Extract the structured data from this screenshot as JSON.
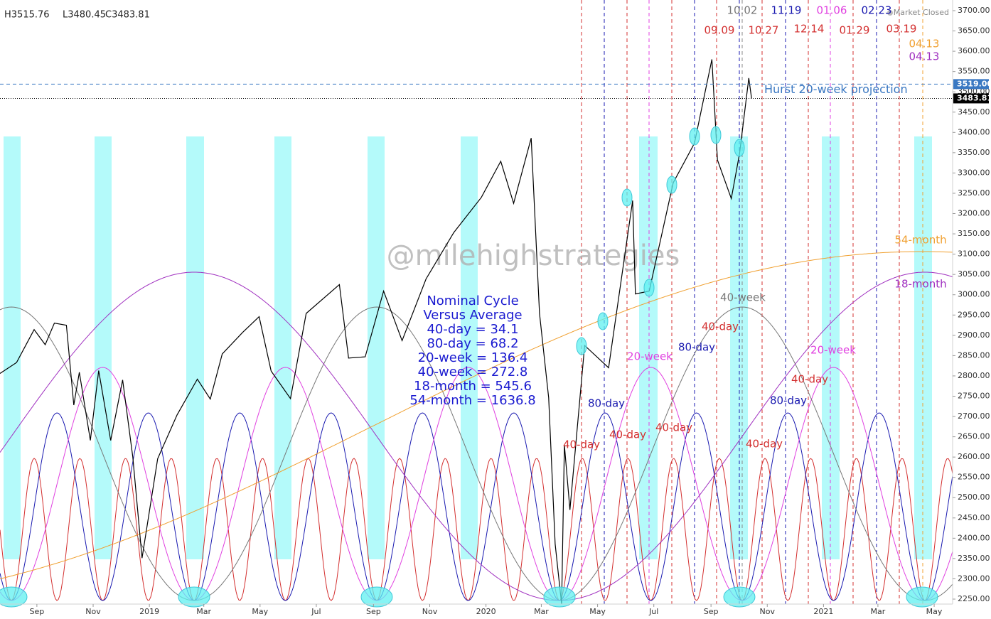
{
  "chart_data": {
    "type": "line",
    "ohlc": [
      "H3515.76",
      "L3480.45",
      "C3483.81"
    ],
    "status": "Market Closed",
    "watermark": "@milehighstrategies",
    "color": "#000000",
    "xlim": [
      "2018-07-23",
      "2021-05-21"
    ],
    "xticks": [
      {
        "value": "2018-09-01",
        "label": "Sep"
      },
      {
        "value": "2018-11-01",
        "label": "Nov"
      },
      {
        "value": "2019-01-01",
        "label": "2019"
      },
      {
        "value": "2019-03-01",
        "label": "Mar"
      },
      {
        "value": "2019-05-01",
        "label": "May"
      },
      {
        "value": "2019-07-01",
        "label": "Jul"
      },
      {
        "value": "2019-09-01",
        "label": "Sep"
      },
      {
        "value": "2019-11-01",
        "label": "Nov"
      },
      {
        "value": "2020-01-01",
        "label": "2020"
      },
      {
        "value": "2020-03-01",
        "label": "Mar"
      },
      {
        "value": "2020-05-01",
        "label": "May"
      },
      {
        "value": "2020-07-01",
        "label": "Jul"
      },
      {
        "value": "2020-09-01",
        "label": "Sep"
      },
      {
        "value": "2020-11-01",
        "label": "Nov"
      },
      {
        "value": "2021-01-01",
        "label": "2021"
      },
      {
        "value": "2021-03-01",
        "label": "Mar"
      },
      {
        "value": "2021-05-01",
        "label": "May"
      }
    ],
    "ylim": [
      2250,
      3700
    ],
    "yticks": [
      {
        "value": 2250,
        "label": "2250.00"
      },
      {
        "value": 2300,
        "label": "2300.00"
      },
      {
        "value": 2350,
        "label": "2350.00"
      },
      {
        "value": 2400,
        "label": "2400.00"
      },
      {
        "value": 2450,
        "label": "2450.00"
      },
      {
        "value": 2500,
        "label": "2500.00"
      },
      {
        "value": 2550,
        "label": "2550.00"
      },
      {
        "value": 2600,
        "label": "2600.00"
      },
      {
        "value": 2650,
        "label": "2650.00"
      },
      {
        "value": 2700,
        "label": "2700.00"
      },
      {
        "value": 2750,
        "label": "2750.00"
      },
      {
        "value": 2800,
        "label": "2800.00"
      },
      {
        "value": 2850,
        "label": "2850.00"
      },
      {
        "value": 2900,
        "label": "2900.00"
      },
      {
        "value": 2950,
        "label": "2950.00"
      },
      {
        "value": 3000,
        "label": "3000.00"
      },
      {
        "value": 3050,
        "label": "3050.00"
      },
      {
        "value": 3100,
        "label": "3100.00"
      },
      {
        "value": 3150,
        "label": "3150.00"
      },
      {
        "value": 3200,
        "label": "3200.00"
      },
      {
        "value": 3250,
        "label": "3250.00"
      },
      {
        "value": 3300,
        "label": "3300.00"
      },
      {
        "value": 3350,
        "label": "3350.00"
      },
      {
        "value": 3400,
        "label": "3400.00"
      },
      {
        "value": 3450,
        "label": "3450.00"
      },
      {
        "value": 3500,
        "label": "3500.00"
      },
      {
        "value": 3550,
        "label": "3550.00"
      },
      {
        "value": 3600,
        "label": "3600.00"
      },
      {
        "value": 3650,
        "label": "3650.00"
      },
      {
        "value": 3700,
        "label": "3700.00"
      }
    ],
    "x": [
      "2018-07-23",
      "2018-08-10",
      "2018-08-29",
      "2018-09-10",
      "2018-09-20",
      "2018-10-03",
      "2018-10-11",
      "2018-10-17",
      "2018-10-29",
      "2018-11-07",
      "2018-11-20",
      "2018-12-03",
      "2018-12-14",
      "2018-12-24",
      "2019-01-10",
      "2019-01-31",
      "2019-02-22",
      "2019-03-08",
      "2019-03-21",
      "2019-04-12",
      "2019-04-30",
      "2019-05-13",
      "2019-06-03",
      "2019-06-20",
      "2019-07-26",
      "2019-08-05",
      "2019-08-23",
      "2019-09-12",
      "2019-10-02",
      "2019-10-28",
      "2019-11-27",
      "2019-12-27",
      "2020-01-17",
      "2020-01-31",
      "2020-02-19",
      "2020-02-28",
      "2020-03-09",
      "2020-03-16",
      "2020-03-23",
      "2020-03-26",
      "2020-04-01",
      "2020-04-17",
      "2020-05-13",
      "2020-06-08",
      "2020-06-11",
      "2020-06-26",
      "2020-07-22",
      "2020-08-14",
      "2020-09-02",
      "2020-09-08",
      "2020-09-23",
      "2020-10-02",
      "2020-10-12",
      "2020-10-15"
    ],
    "values": [
      2806,
      2833,
      2914,
      2877,
      2930,
      2925,
      2728,
      2809,
      2641,
      2813,
      2641,
      2790,
      2600,
      2351,
      2596,
      2704,
      2792,
      2743,
      2854,
      2907,
      2946,
      2812,
      2744,
      2954,
      3025,
      2844,
      2847,
      3009,
      2887,
      3039,
      3153,
      3240,
      3329,
      3225,
      3386,
      2954,
      2746,
      2386,
      2237,
      2630,
      2470,
      2875,
      2820,
      3232,
      3002,
      3009,
      3276,
      3373,
      3580,
      3332,
      3237,
      3348,
      3534,
      3483.81
    ],
    "hlines": [
      {
        "value": 3519,
        "label": "3519.00",
        "color": "#3a78c2",
        "text": "Hurst 20-week projection"
      },
      {
        "value": 3483.81,
        "label": "3483.81",
        "color": "#000000"
      }
    ],
    "date_labels": [
      {
        "text": "10.02",
        "color": "#777777"
      },
      {
        "text": "11.19",
        "color": "#1a1ab0"
      },
      {
        "text": "01.06",
        "color": "#e040e0"
      },
      {
        "text": "02.23",
        "color": "#1a1ab0"
      },
      {
        "text": "09.09",
        "color": "#d32f2f"
      },
      {
        "text": "10.27",
        "color": "#d32f2f"
      },
      {
        "text": "12.14",
        "color": "#d32f2f"
      },
      {
        "text": "01.29",
        "color": "#d32f2f"
      },
      {
        "text": "03.19",
        "color": "#d32f2f"
      },
      {
        "text": "04.13",
        "color": "#f0a030"
      },
      {
        "text": "04.13",
        "color": "#a030c0"
      }
    ],
    "cycle_labels": [
      {
        "text": "40-day",
        "color": "#d32f2f"
      },
      {
        "text": "40-day",
        "color": "#d32f2f"
      },
      {
        "text": "40-day",
        "color": "#d32f2f"
      },
      {
        "text": "40-day",
        "color": "#d32f2f"
      },
      {
        "text": "40-day",
        "color": "#d32f2f"
      },
      {
        "text": "40-day",
        "color": "#d32f2f"
      },
      {
        "text": "80-day",
        "color": "#1a1ab0"
      },
      {
        "text": "80-day",
        "color": "#1a1ab0"
      },
      {
        "text": "80-day",
        "color": "#1a1ab0"
      },
      {
        "text": "20-week",
        "color": "#e040e0"
      },
      {
        "text": "20-week",
        "color": "#e040e0"
      },
      {
        "text": "40-week",
        "color": "#777777"
      },
      {
        "text": "18-month",
        "color": "#a030c0"
      },
      {
        "text": "54-month",
        "color": "#f0a030"
      }
    ],
    "nominal_cycle": [
      "Nominal Cycle",
      "Versus Average",
      "40-day = 34.1",
      "80-day = 68.2",
      "20-week = 136.4",
      "40-week = 272.8",
      "18-month = 545.6",
      "54-month = 1636.8"
    ]
  }
}
